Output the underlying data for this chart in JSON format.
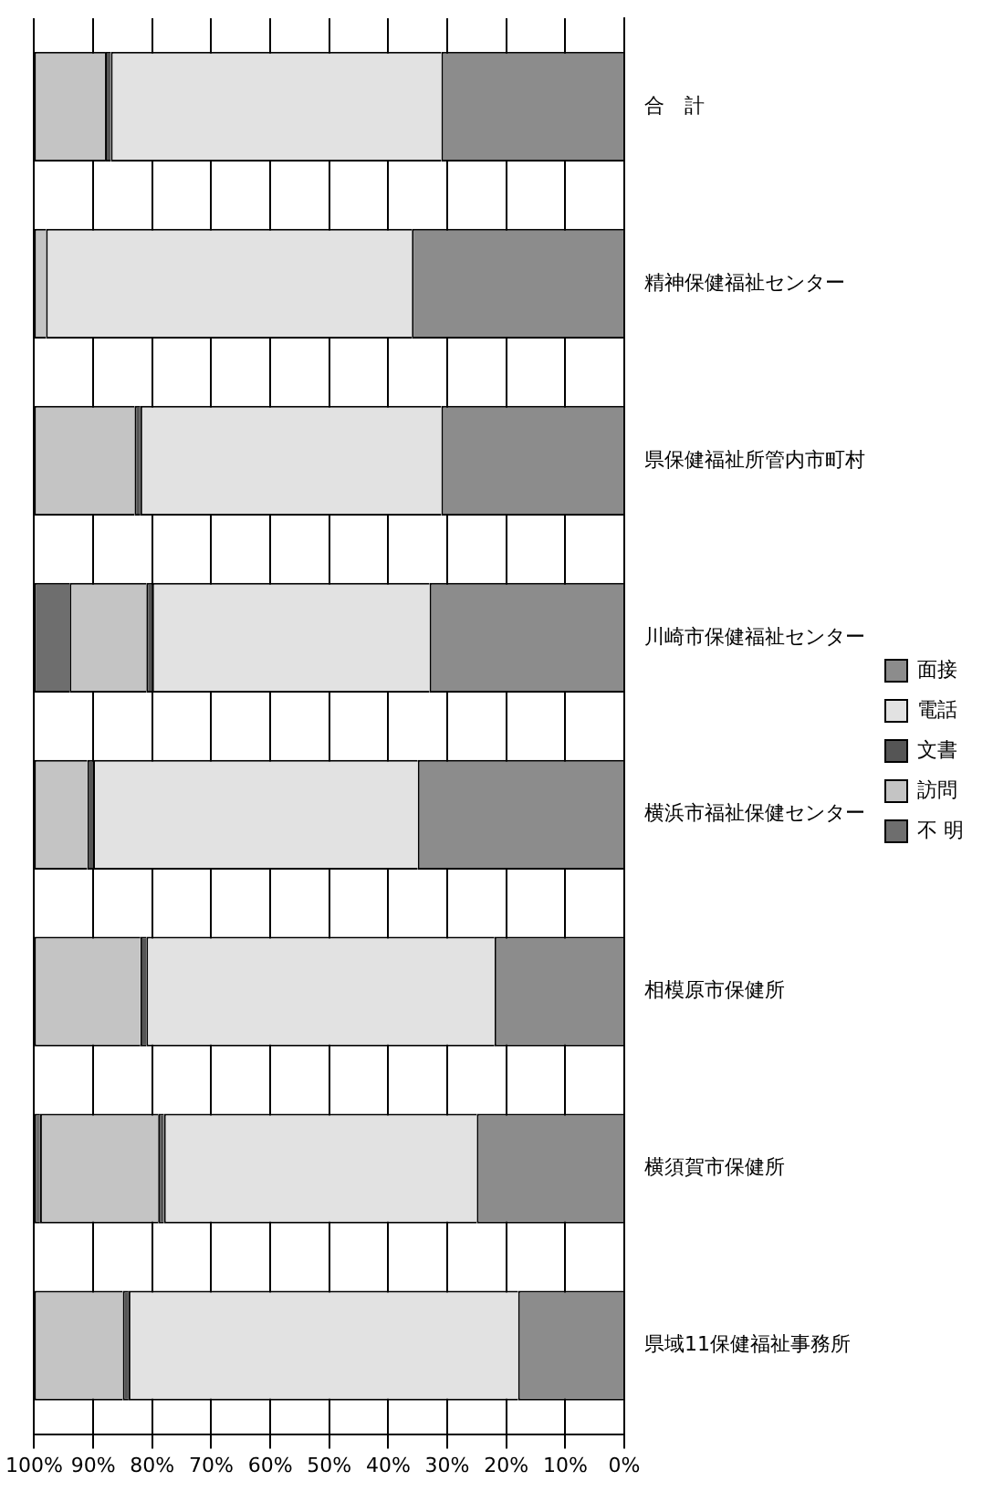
{
  "chart_data": {
    "type": "bar",
    "orientation": "horizontal",
    "stacked": true,
    "categories": [
      "合　計",
      "精神保健福祉センター",
      "県保健福祉所管内市町村",
      "川崎市保健福祉センター",
      "横浜市福祉保健センター",
      "相模原市保健所",
      "横須賀市保健所",
      "県域11保健福祉事務所"
    ],
    "series": [
      {
        "name": "面接",
        "color": "#8c8c8c",
        "values": [
          31,
          36,
          31,
          33,
          35,
          22,
          25,
          18
        ]
      },
      {
        "name": "電話",
        "color": "#e2e2e2",
        "values": [
          56,
          62,
          51,
          47,
          55,
          59,
          53,
          66
        ]
      },
      {
        "name": "文書",
        "color": "#555555",
        "values": [
          1,
          0,
          1,
          1,
          1,
          1,
          1,
          1
        ]
      },
      {
        "name": "訪問",
        "color": "#c4c4c4",
        "values": [
          12,
          2,
          17,
          13,
          9,
          18,
          20,
          15
        ]
      },
      {
        "name": "不 明",
        "color": "#6e6e6e",
        "values": [
          0,
          0,
          0,
          6,
          0,
          0,
          1,
          0
        ]
      }
    ],
    "xlim": [
      100,
      0
    ],
    "xticks": [
      {
        "value": 100,
        "label": "100%"
      },
      {
        "value": 90,
        "label": "90%"
      },
      {
        "value": 80,
        "label": "80%"
      },
      {
        "value": 70,
        "label": "70%"
      },
      {
        "value": 60,
        "label": "60%"
      },
      {
        "value": 50,
        "label": "50%"
      },
      {
        "value": 40,
        "label": "40%"
      },
      {
        "value": 30,
        "label": "30%"
      },
      {
        "value": 20,
        "label": "20%"
      },
      {
        "value": 10,
        "label": "10%"
      },
      {
        "value": 0,
        "label": "0%"
      }
    ],
    "grid": "x",
    "legend": "right"
  }
}
